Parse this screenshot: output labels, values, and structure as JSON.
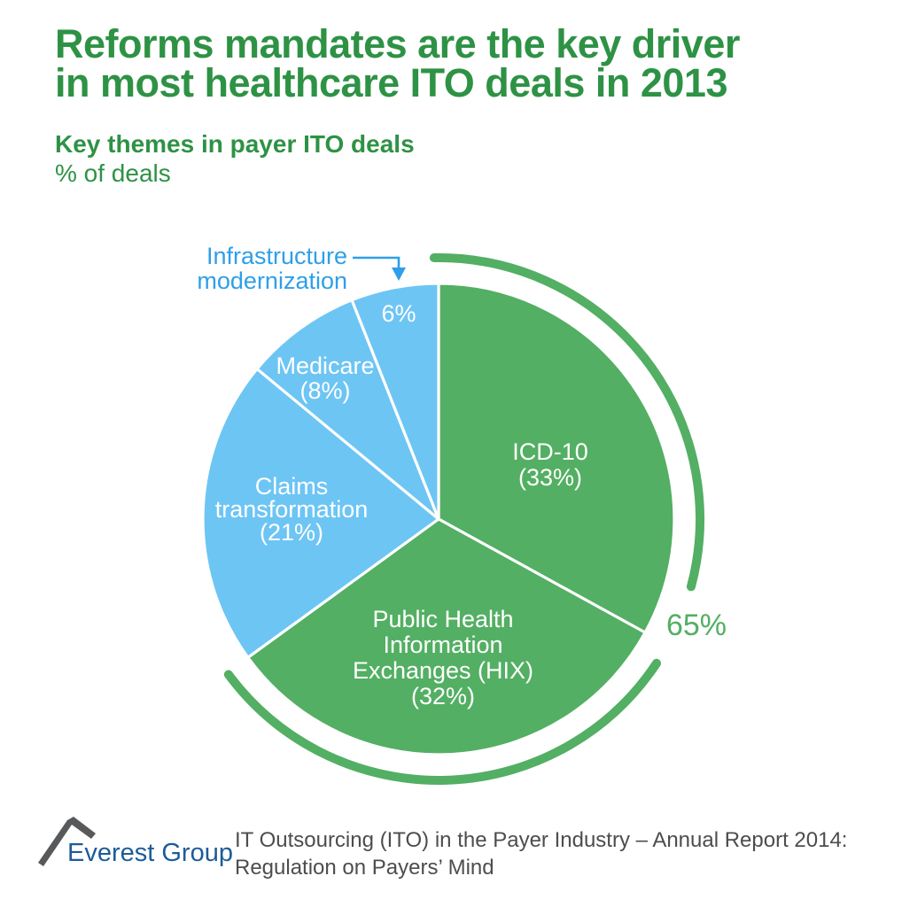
{
  "header": {
    "title": "Reforms mandates are the key driver\nin most healthcare ITO deals in 2013",
    "subtitle": "Key themes in payer ITO deals",
    "unit_label": "% of deals"
  },
  "colors": {
    "title_green": "#2e9245",
    "pie_green": "#53af63",
    "slice_blue": "#6dc5f4",
    "callout_blue": "#2f9fe9",
    "label_white": "#ffffff",
    "source_gray": "#4d4d4f",
    "logo_blue": "#1d5c99",
    "logo_gray": "#58595b"
  },
  "chart_data": {
    "type": "pie",
    "title": "Key themes in payer ITO deals",
    "unit": "% of deals",
    "start_angle_deg": 0,
    "direction": "clockwise",
    "label_text_color": "#ffffff",
    "slices": [
      {
        "name": "ICD-10",
        "value": 33,
        "color": "#53af63",
        "label_lines": [
          "ICD-10",
          "(33%)"
        ]
      },
      {
        "name": "Public Health Information Exchanges (HIX)",
        "value": 32,
        "color": "#53af63",
        "label_lines": [
          "Public Health",
          "Information",
          "Exchanges (HIX)",
          "(32%)"
        ]
      },
      {
        "name": "Claims transformation",
        "value": 21,
        "color": "#6dc5f4",
        "label_lines": [
          "Claims",
          "transformation",
          "(21%)"
        ]
      },
      {
        "name": "Medicare",
        "value": 8,
        "color": "#6dc5f4",
        "label_lines": [
          "Medicare",
          "(8%)"
        ]
      },
      {
        "name": "Infrastructure modernization",
        "value": 6,
        "color": "#6dc5f4",
        "label_lines": [
          "6%"
        ],
        "callout_lines": [
          "Infrastructure",
          "modernization"
        ],
        "callout_color": "#2f9fe9"
      }
    ],
    "highlight_arc": {
      "label": "65%",
      "value": 65,
      "color": "#53af63",
      "covers": "ICD-10 + Public Health Information Exchanges (HIX)"
    }
  },
  "footer": {
    "logo_text": "Everest Group",
    "source_line1": "IT Outsourcing (ITO) in the Payer Industry – Annual Report 2014:",
    "source_line2": "Regulation on Payers’ Mind"
  }
}
